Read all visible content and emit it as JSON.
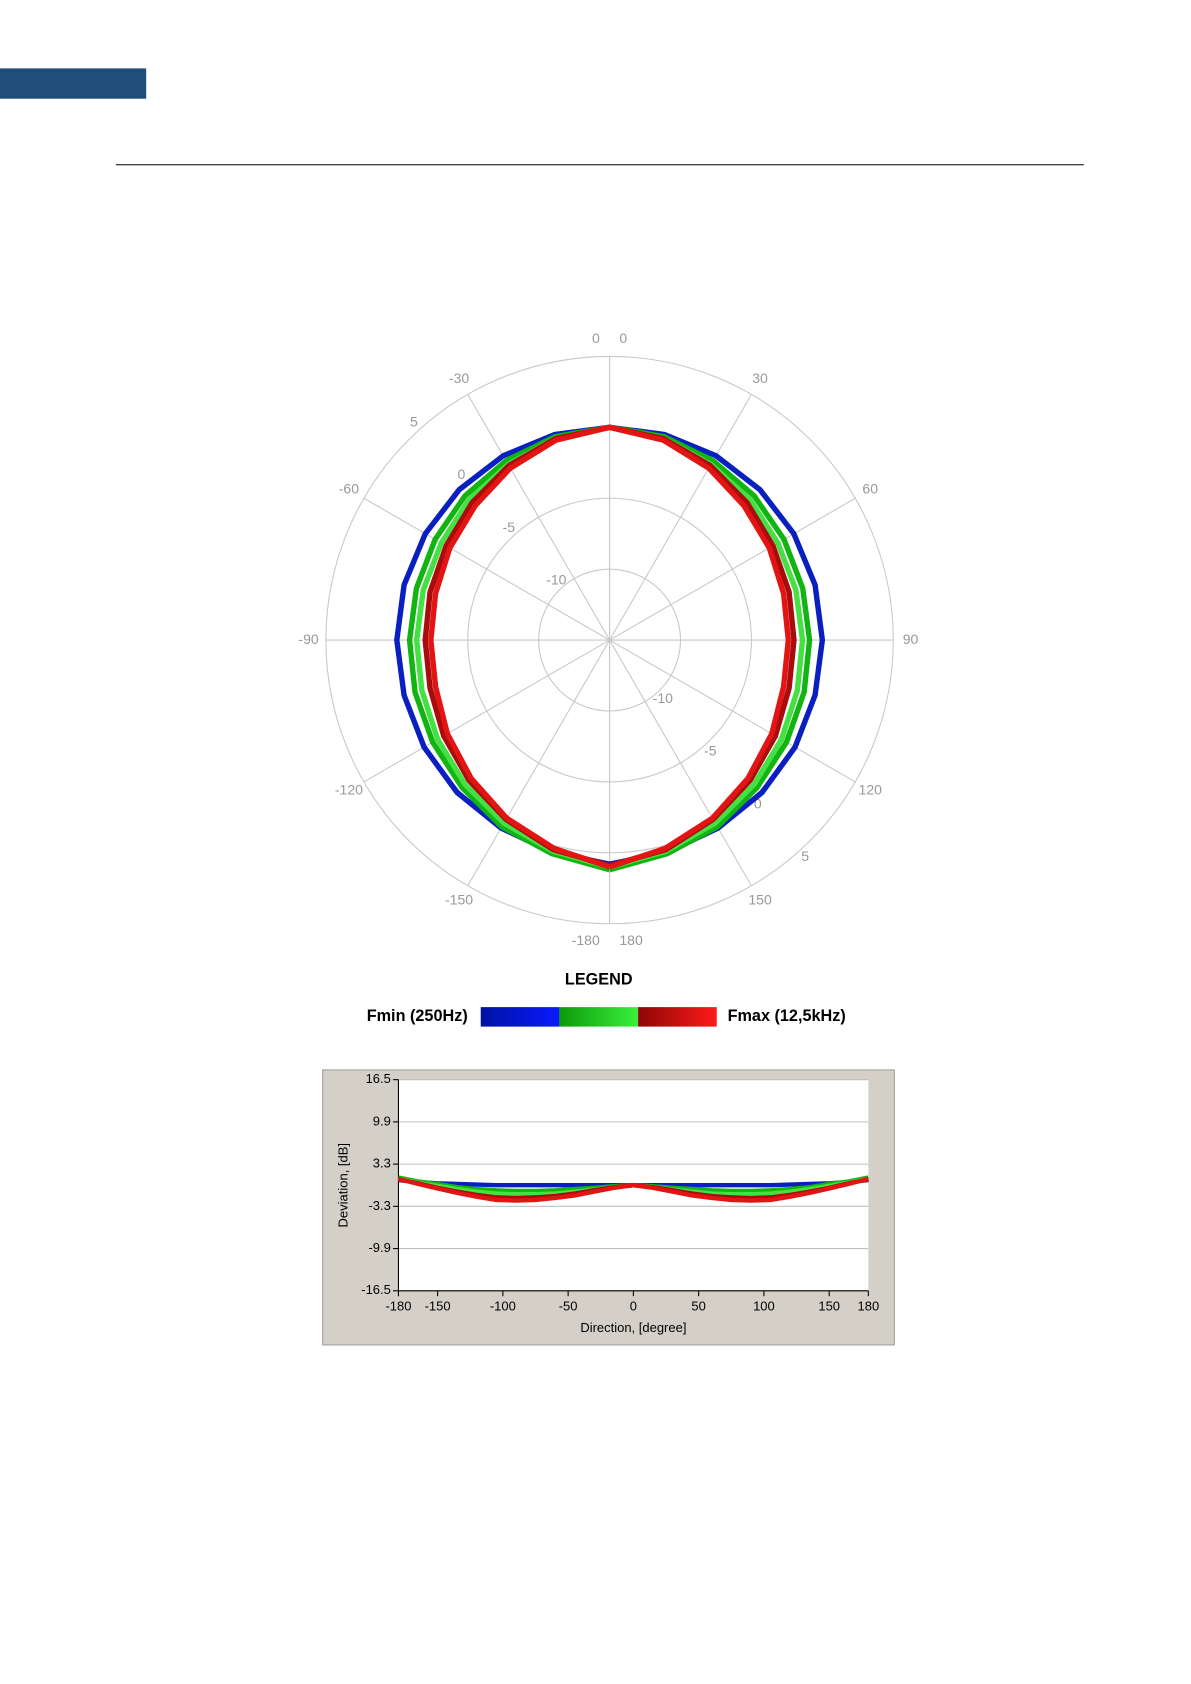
{
  "chart_data": [
    {
      "type": "polar",
      "x": [
        -180,
        -165,
        -150,
        -135,
        -120,
        -105,
        -90,
        -75,
        -60,
        -45,
        -30,
        -15,
        0,
        15,
        30,
        45,
        60,
        75,
        90,
        105,
        120,
        135,
        150,
        165,
        180
      ],
      "rlim": [
        -15,
        5
      ],
      "rticks": [
        -10,
        -5,
        0,
        5
      ],
      "thetaticks": [
        -180,
        -150,
        -120,
        -90,
        -60,
        -30,
        0,
        0,
        30,
        60,
        90,
        120,
        150,
        180
      ],
      "grid": true,
      "series": [
        {
          "color": "#0a1fc0",
          "values": [
            0.8,
            0.5,
            0.3,
            0.2,
            0.1,
            0,
            0,
            0,
            0,
            0,
            0,
            0,
            0,
            0,
            0,
            0,
            0,
            0,
            0,
            0,
            0.1,
            0.2,
            0.3,
            0.5,
            0.8
          ]
        },
        {
          "color": "#12b412",
          "values": [
            1.2,
            0.6,
            0.2,
            -0.3,
            -0.6,
            -0.8,
            -0.9,
            -0.9,
            -0.8,
            -0.6,
            -0.4,
            -0.15,
            0,
            -0.15,
            -0.4,
            -0.6,
            -0.8,
            -0.9,
            -0.9,
            -0.8,
            -0.6,
            -0.3,
            0.2,
            0.6,
            1.2
          ]
        },
        {
          "color": "#44e044",
          "values": [
            1.0,
            0.4,
            -0.1,
            -0.6,
            -1.0,
            -1.3,
            -1.4,
            -1.4,
            -1.3,
            -1.0,
            -0.7,
            -0.3,
            0,
            -0.3,
            -0.7,
            -1.0,
            -1.3,
            -1.4,
            -1.4,
            -1.3,
            -1.0,
            -0.6,
            -0.1,
            0.4,
            1.0
          ]
        },
        {
          "color": "#a80c0c",
          "values": [
            0.9,
            0.3,
            -0.4,
            -1.0,
            -1.5,
            -1.9,
            -2.0,
            -1.9,
            -1.7,
            -1.3,
            -0.8,
            -0.3,
            0,
            -0.3,
            -0.8,
            -1.3,
            -1.7,
            -1.9,
            -2.0,
            -1.9,
            -1.5,
            -1.0,
            -0.4,
            0.3,
            0.9
          ]
        },
        {
          "color": "#e31414",
          "values": [
            1.0,
            0.2,
            -0.5,
            -1.2,
            -1.8,
            -2.3,
            -2.4,
            -2.3,
            -2.0,
            -1.6,
            -1.0,
            -0.4,
            0,
            -0.4,
            -1.0,
            -1.6,
            -2.0,
            -2.3,
            -2.4,
            -2.3,
            -1.8,
            -1.2,
            -0.5,
            0.2,
            1.0
          ]
        }
      ],
      "legend": {
        "title": "LEGEND",
        "min_label": "Fmin (250Hz)",
        "max_label": "Fmax (12,5kHz)",
        "colors": [
          [
            "#0012a0",
            "#0a1aff"
          ],
          [
            "#0c9a0c",
            "#3af03a"
          ],
          [
            "#8c0606",
            "#ff1a1a"
          ]
        ]
      }
    },
    {
      "type": "line",
      "x": [
        -180,
        -165,
        -150,
        -135,
        -120,
        -105,
        -90,
        -75,
        -60,
        -45,
        -30,
        -15,
        0,
        15,
        30,
        45,
        60,
        75,
        90,
        105,
        120,
        135,
        150,
        165,
        180
      ],
      "xlim": [
        -180,
        180
      ],
      "ylim": [
        -16.5,
        16.5
      ],
      "xticks": [
        -180,
        -150,
        -100,
        -50,
        0,
        50,
        100,
        150,
        180
      ],
      "yticks": [
        -16.5,
        -9.9,
        -3.3,
        3.3,
        9.9,
        16.5
      ],
      "xlabel": "Direction, [degree]",
      "ylabel": "Deviation, [dB]",
      "grid": true,
      "series": [
        {
          "color": "#0a1fc0",
          "values": [
            0.8,
            0.5,
            0.3,
            0.2,
            0.1,
            0,
            0,
            0,
            0,
            0,
            0,
            0,
            0,
            0,
            0,
            0,
            0,
            0,
            0,
            0,
            0.1,
            0.2,
            0.3,
            0.5,
            0.8
          ]
        },
        {
          "color": "#12b412",
          "values": [
            1.2,
            0.6,
            0.2,
            -0.3,
            -0.6,
            -0.8,
            -0.9,
            -0.9,
            -0.8,
            -0.6,
            -0.4,
            -0.15,
            0,
            -0.15,
            -0.4,
            -0.6,
            -0.8,
            -0.9,
            -0.9,
            -0.8,
            -0.6,
            -0.3,
            0.2,
            0.6,
            1.2
          ]
        },
        {
          "color": "#44e044",
          "values": [
            1.0,
            0.4,
            -0.1,
            -0.6,
            -1.0,
            -1.3,
            -1.4,
            -1.4,
            -1.3,
            -1.0,
            -0.7,
            -0.3,
            0,
            -0.3,
            -0.7,
            -1.0,
            -1.3,
            -1.4,
            -1.4,
            -1.3,
            -1.0,
            -0.6,
            -0.1,
            0.4,
            1.0
          ]
        },
        {
          "color": "#a80c0c",
          "values": [
            0.9,
            0.3,
            -0.4,
            -1.0,
            -1.5,
            -1.9,
            -2.0,
            -1.9,
            -1.7,
            -1.3,
            -0.8,
            -0.3,
            0,
            -0.3,
            -0.8,
            -1.3,
            -1.7,
            -1.9,
            -2.0,
            -1.9,
            -1.5,
            -1.0,
            -0.4,
            0.3,
            0.9
          ]
        },
        {
          "color": "#e31414",
          "values": [
            1.0,
            0.2,
            -0.5,
            -1.2,
            -1.8,
            -2.3,
            -2.4,
            -2.3,
            -2.0,
            -1.6,
            -1.0,
            -0.4,
            0,
            -0.4,
            -1.0,
            -1.6,
            -2.0,
            -2.3,
            -2.4,
            -2.3,
            -1.8,
            -1.2,
            -0.5,
            0.2,
            1.0
          ]
        }
      ]
    }
  ]
}
